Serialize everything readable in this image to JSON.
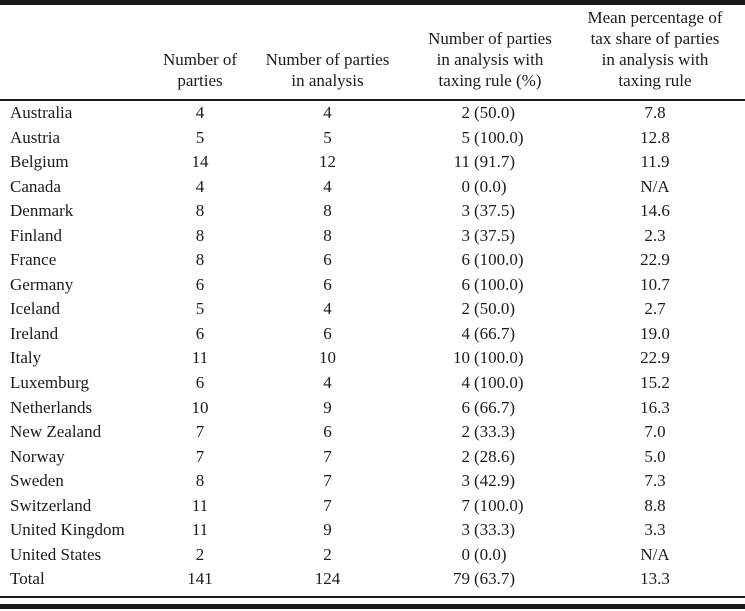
{
  "table": {
    "headers": [
      "",
      "Number of\nparties",
      "Number of parties\nin analysis",
      "Number of parties\nin analysis with\ntaxing rule (%)",
      "Mean percentage of\ntax share of parties\nin analysis with\ntaxing rule"
    ],
    "rows": [
      {
        "country": "Australia",
        "parties": "4",
        "in_analysis": "4",
        "taxing_rule": "2 (50.0)",
        "mean_tax_share": "7.8"
      },
      {
        "country": "Austria",
        "parties": "5",
        "in_analysis": "5",
        "taxing_rule": "5 (100.0)",
        "mean_tax_share": "12.8"
      },
      {
        "country": "Belgium",
        "parties": "14",
        "in_analysis": "12",
        "taxing_rule": "11 (91.7)",
        "mean_tax_share": "11.9"
      },
      {
        "country": "Canada",
        "parties": "4",
        "in_analysis": "4",
        "taxing_rule": "0 (0.0)",
        "mean_tax_share": "N/A"
      },
      {
        "country": "Denmark",
        "parties": "8",
        "in_analysis": "8",
        "taxing_rule": "3 (37.5)",
        "mean_tax_share": "14.6"
      },
      {
        "country": "Finland",
        "parties": "8",
        "in_analysis": "8",
        "taxing_rule": "3 (37.5)",
        "mean_tax_share": "2.3"
      },
      {
        "country": "France",
        "parties": "8",
        "in_analysis": "6",
        "taxing_rule": "6 (100.0)",
        "mean_tax_share": "22.9"
      },
      {
        "country": "Germany",
        "parties": "6",
        "in_analysis": "6",
        "taxing_rule": "6 (100.0)",
        "mean_tax_share": "10.7"
      },
      {
        "country": "Iceland",
        "parties": "5",
        "in_analysis": "4",
        "taxing_rule": "2 (50.0)",
        "mean_tax_share": "2.7"
      },
      {
        "country": "Ireland",
        "parties": "6",
        "in_analysis": "6",
        "taxing_rule": "4 (66.7)",
        "mean_tax_share": "19.0"
      },
      {
        "country": "Italy",
        "parties": "11",
        "in_analysis": "10",
        "taxing_rule": "10 (100.0)",
        "mean_tax_share": "22.9"
      },
      {
        "country": "Luxemburg",
        "parties": "6",
        "in_analysis": "4",
        "taxing_rule": "4 (100.0)",
        "mean_tax_share": "15.2"
      },
      {
        "country": "Netherlands",
        "parties": "10",
        "in_analysis": "9",
        "taxing_rule": "6 (66.7)",
        "mean_tax_share": "16.3"
      },
      {
        "country": "New Zealand",
        "parties": "7",
        "in_analysis": "6",
        "taxing_rule": "2 (33.3)",
        "mean_tax_share": "7.0"
      },
      {
        "country": "Norway",
        "parties": "7",
        "in_analysis": "7",
        "taxing_rule": "2 (28.6)",
        "mean_tax_share": "5.0"
      },
      {
        "country": "Sweden",
        "parties": "8",
        "in_analysis": "7",
        "taxing_rule": "3 (42.9)",
        "mean_tax_share": "7.3"
      },
      {
        "country": "Switzerland",
        "parties": "11",
        "in_analysis": "7",
        "taxing_rule": "7 (100.0)",
        "mean_tax_share": "8.8"
      },
      {
        "country": "United Kingdom",
        "parties": "11",
        "in_analysis": "9",
        "taxing_rule": "3 (33.3)",
        "mean_tax_share": "3.3"
      },
      {
        "country": "United States",
        "parties": "2",
        "in_analysis": "2",
        "taxing_rule": "0 (0.0)",
        "mean_tax_share": "N/A"
      },
      {
        "country": "Total",
        "parties": "141",
        "in_analysis": "124",
        "taxing_rule": "79 (63.7)",
        "mean_tax_share": "13.3"
      }
    ]
  },
  "colors": {
    "text": "#1b1b1b",
    "rule": "#1a1a1a",
    "background": "#ffffff"
  }
}
